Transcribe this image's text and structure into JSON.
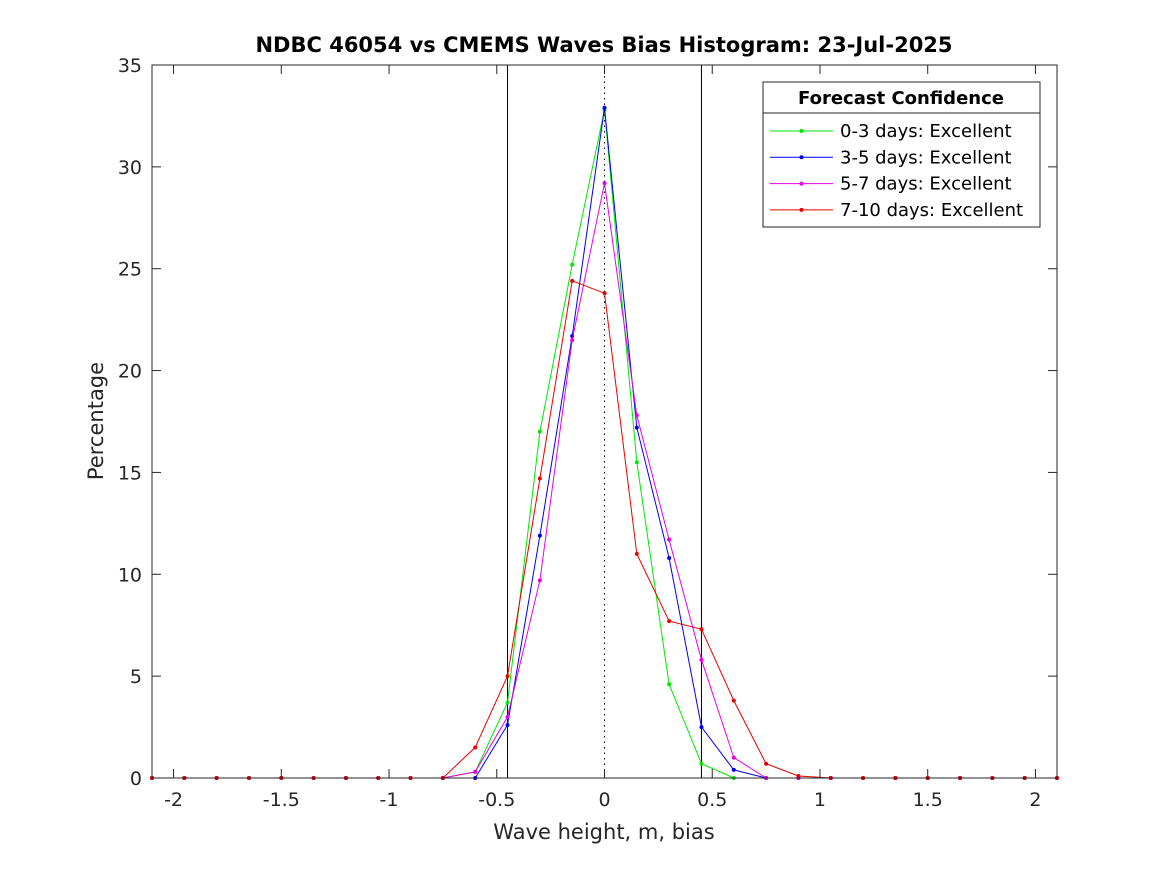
{
  "chart_data": {
    "type": "line",
    "title": "NDBC 46054 vs CMEMS Waves Bias Histogram: 23-Jul-2025",
    "xlabel": "Wave height, m, bias",
    "ylabel": "Percentage",
    "xlim": [
      -2.1,
      2.1
    ],
    "ylim": [
      0,
      35
    ],
    "xticks": [
      -2,
      -1.5,
      -1,
      -0.5,
      0,
      0.5,
      1,
      1.5,
      2
    ],
    "xtick_labels": [
      "-2",
      "-1.5",
      "-1",
      "-0.5",
      "0",
      "0.5",
      "1",
      "1.5",
      "2"
    ],
    "yticks": [
      0,
      5,
      10,
      15,
      20,
      25,
      30,
      35
    ],
    "ytick_labels": [
      "0",
      "5",
      "10",
      "15",
      "20",
      "25",
      "30",
      "35"
    ],
    "grid": false,
    "reference_lines": {
      "solid": [
        -0.45,
        0.45
      ],
      "dotted": [
        0
      ]
    },
    "legend": {
      "title": "Forecast Confidence",
      "placement": "top-right"
    },
    "x": [
      -2.1,
      -1.95,
      -1.8,
      -1.65,
      -1.5,
      -1.35,
      -1.2,
      -1.05,
      -0.9,
      -0.75,
      -0.6,
      -0.45,
      -0.3,
      -0.15,
      0,
      0.15,
      0.3,
      0.45,
      0.6,
      0.75,
      0.9,
      1.05,
      1.2,
      1.35,
      1.5,
      1.65,
      1.8,
      1.95,
      2.1
    ],
    "series": [
      {
        "name": "0-3 days: Excellent",
        "color": "#00e600",
        "values": [
          0,
          0,
          0,
          0,
          0,
          0,
          0,
          0,
          0,
          0,
          0.3,
          3.7,
          17.0,
          25.2,
          32.8,
          15.5,
          4.6,
          0.7,
          0,
          0,
          0,
          0,
          0,
          0,
          0,
          0,
          0,
          0,
          0
        ]
      },
      {
        "name": "3-5 days: Excellent",
        "color": "#0000e6",
        "values": [
          0,
          0,
          0,
          0,
          0,
          0,
          0,
          0,
          0,
          0,
          0,
          2.6,
          11.9,
          21.7,
          32.9,
          17.2,
          10.8,
          2.5,
          0.4,
          0,
          0,
          0,
          0,
          0,
          0,
          0,
          0,
          0,
          0
        ]
      },
      {
        "name": "5-7 days: Excellent",
        "color": "#e600e6",
        "values": [
          0,
          0,
          0,
          0,
          0,
          0,
          0,
          0,
          0,
          0,
          0.3,
          3.0,
          9.7,
          21.5,
          29.2,
          17.8,
          11.7,
          5.8,
          1.0,
          0,
          0,
          0,
          0,
          0,
          0,
          0,
          0,
          0,
          0
        ]
      },
      {
        "name": "7-10 days: Excellent",
        "color": "#e60000",
        "values": [
          0,
          0,
          0,
          0,
          0,
          0,
          0,
          0,
          0,
          0,
          1.5,
          5.0,
          14.7,
          24.4,
          23.8,
          11.0,
          7.7,
          7.3,
          3.8,
          0.7,
          0.1,
          0,
          0,
          0,
          0,
          0,
          0,
          0,
          0
        ]
      }
    ]
  }
}
